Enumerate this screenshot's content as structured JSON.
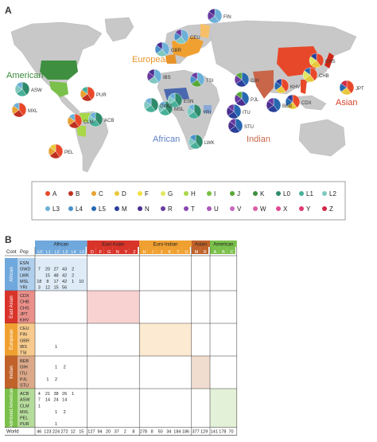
{
  "panel_a_label": "A",
  "panel_b_label": "B",
  "map": {
    "regions": [
      {
        "id": "american",
        "label": "American",
        "color": "#3a8a3a"
      },
      {
        "id": "european",
        "label": "European",
        "color": "#e8932a"
      },
      {
        "id": "african",
        "label": "African",
        "color": "#5b7fc4"
      },
      {
        "id": "indian",
        "label": "Indian",
        "color": "#c9664a"
      },
      {
        "id": "asian",
        "label": "Asian",
        "color": "#d8422a"
      }
    ],
    "populations": [
      "FIN",
      "CEU",
      "GBR",
      "IBS",
      "TSI",
      "ASW",
      "MXL",
      "PUR",
      "ACB",
      "CLM",
      "PEL",
      "GWD",
      "MSL",
      "ESN",
      "YRI",
      "LWK",
      "GIH",
      "PJL",
      "BEB",
      "ITU",
      "STU",
      "CDX",
      "CHB",
      "CHS",
      "JPT",
      "KHV"
    ]
  },
  "legend": {
    "row1": [
      {
        "label": "A",
        "color": "#e8482a"
      },
      {
        "label": "B",
        "color": "#c03020"
      },
      {
        "label": "C",
        "color": "#e8a030"
      },
      {
        "label": "D",
        "color": "#e8c83a"
      },
      {
        "label": "F",
        "color": "#f0e040"
      },
      {
        "label": "G",
        "color": "#e0e860"
      },
      {
        "label": "H",
        "color": "#a8d848"
      },
      {
        "label": "I",
        "color": "#78c040"
      },
      {
        "label": "J",
        "color": "#58a838"
      },
      {
        "label": "K",
        "color": "#3e9040"
      },
      {
        "label": "L0",
        "color": "#2e8a6a"
      },
      {
        "label": "L1",
        "color": "#48b098"
      },
      {
        "label": "L2",
        "color": "#80c8c0"
      }
    ],
    "row2": [
      {
        "label": "L3",
        "color": "#6cb0d8"
      },
      {
        "label": "L4",
        "color": "#4a90c8"
      },
      {
        "label": "L5",
        "color": "#2868b0"
      },
      {
        "label": "M",
        "color": "#2a3e9a"
      },
      {
        "label": "N",
        "color": "#4a2e90"
      },
      {
        "label": "R",
        "color": "#6a3aa0"
      },
      {
        "label": "T",
        "color": "#8a48b0"
      },
      {
        "label": "U",
        "color": "#a858b8"
      },
      {
        "label": "V",
        "color": "#c868c0"
      },
      {
        "label": "W",
        "color": "#d860a8"
      },
      {
        "label": "X",
        "color": "#e04890"
      },
      {
        "label": "Y",
        "color": "#e03870"
      },
      {
        "label": "Z",
        "color": "#d02848"
      }
    ]
  },
  "table": {
    "head_cont": "Cont",
    "head_pop": "Pop",
    "groups": [
      {
        "name": "African",
        "color": "#6fa8dc",
        "cols": [
          "L0",
          "L1",
          "L2",
          "L3",
          "L4",
          "L5"
        ]
      },
      {
        "name": "East Asian",
        "color": "#d9342a",
        "cols": [
          "D",
          "F",
          "G",
          "N",
          "Y",
          "Z"
        ]
      },
      {
        "name": "Euro-Indian",
        "color": "#f0a030",
        "cols": [
          "H",
          "I",
          "J",
          "K",
          "T",
          "U"
        ]
      },
      {
        "name": "Asian",
        "color": "#c0622a",
        "cols": [
          "M",
          "R"
        ]
      },
      {
        "name": "American",
        "color": "#7ac04a",
        "cols": [
          "A",
          "B",
          "C"
        ]
      }
    ],
    "continents": [
      {
        "name": "African",
        "color": "#6fa8dc",
        "pops": [
          "ESN",
          "GWD",
          "LWK",
          "MSL",
          "YRI"
        ]
      },
      {
        "name": "East Asian",
        "color": "#d9342a",
        "pops": [
          "CDX",
          "CHB",
          "CHS",
          "JPT",
          "KHV"
        ]
      },
      {
        "name": "European",
        "color": "#f0a030",
        "pops": [
          "CEU",
          "FIN",
          "GBR",
          "IBS",
          "TSI"
        ]
      },
      {
        "name": "Indian",
        "color": "#c0622a",
        "pops": [
          "BEB",
          "GIH",
          "ITU",
          "PJL",
          "STU"
        ]
      },
      {
        "name": "Admixed American",
        "color": "#7ac04a",
        "pops": [
          "ACB",
          "ASW",
          "CLM",
          "MXL",
          "PEL",
          "PUR"
        ]
      }
    ],
    "rows": [
      [
        "",
        "",
        "",
        "",
        "",
        "",
        "",
        "",
        "",
        "",
        "",
        "",
        "",
        "",
        "",
        "",
        "",
        "",
        "",
        "",
        "",
        "",
        "",
        ""
      ],
      [
        "7",
        "20",
        "27",
        "43",
        "2",
        "",
        "",
        "",
        "",
        "",
        "",
        "",
        "",
        "",
        "",
        "",
        "",
        "6",
        "",
        "",
        "",
        "",
        ""
      ],
      [
        "",
        "15",
        "48",
        "42",
        "2",
        "",
        "",
        "",
        "",
        "",
        "",
        "",
        "",
        "",
        "",
        "",
        "",
        "1",
        "",
        "",
        "",
        "",
        ""
      ],
      [
        "18",
        "8",
        "17",
        "42",
        "1",
        "10",
        "",
        "",
        "",
        "",
        "",
        "",
        "",
        "",
        "",
        "",
        "",
        "",
        "1",
        "",
        "",
        "",
        ""
      ],
      [
        "3",
        "12",
        "15",
        "56",
        "",
        "",
        "",
        "",
        "",
        "",
        "",
        "",
        "",
        "",
        "",
        "",
        "",
        "",
        "",
        "",
        "",
        "",
        ""
      ],
      [
        "",
        "",
        "",
        "",
        "",
        "",
        "",
        "",
        "",
        "",
        "",
        "",
        "",
        "",
        "",
        "",
        "",
        "",
        "",
        "",
        "",
        "",
        ""
      ],
      [
        "",
        "",
        "",
        "",
        "",
        "",
        "12",
        "25",
        "",
        "",
        "",
        "",
        "",
        "",
        "",
        "",
        "",
        "",
        "24",
        "14",
        "",
        "",
        ""
      ],
      [
        "",
        "",
        "",
        "",
        "",
        "",
        "",
        "",
        "",
        "",
        "",
        "",
        "",
        "",
        "",
        "",
        "",
        "",
        "",
        "",
        "",
        "",
        ""
      ],
      [
        "",
        "",
        "",
        "",
        "",
        "",
        "",
        "",
        "",
        "",
        "",
        "",
        "",
        "",
        "",
        "",
        "",
        "",
        "",
        "",
        "",
        "",
        ""
      ],
      [
        "",
        "",
        "",
        "",
        "",
        "",
        "",
        "",
        "",
        "",
        "",
        "",
        "",
        "",
        "",
        "",
        "",
        "",
        "",
        "",
        "",
        "",
        ""
      ]
    ],
    "left_block": [
      [
        "",
        "",
        "",
        "",
        "",
        ""
      ],
      [
        "7",
        "20",
        "27",
        "43",
        "2",
        ""
      ],
      [
        "",
        "15",
        "48",
        "42",
        "2",
        ""
      ],
      [
        "18",
        "8",
        "17",
        "42",
        "1",
        "10"
      ],
      [
        "3",
        "12",
        "15",
        "56",
        "",
        ""
      ],
      [
        "",
        "",
        "",
        "",
        "",
        ""
      ],
      [
        "",
        "",
        "",
        "",
        "",
        ""
      ],
      [
        "",
        "",
        "",
        "",
        "",
        ""
      ],
      [
        "",
        "",
        "",
        "",
        "",
        ""
      ],
      [
        "",
        "",
        "",
        "",
        "",
        ""
      ],
      [
        "",
        "",
        "",
        "",
        "",
        ""
      ],
      [
        "",
        "",
        "",
        "",
        "",
        ""
      ],
      [
        "",
        "",
        "",
        "",
        "",
        ""
      ],
      [
        "",
        "",
        "1",
        "",
        "",
        ""
      ],
      [
        "",
        "",
        "",
        "",
        "",
        ""
      ],
      [
        "",
        "",
        "",
        "",
        "",
        ""
      ],
      [
        "",
        "",
        "1",
        "2",
        "",
        ""
      ],
      [
        "",
        "",
        "",
        "",
        "",
        ""
      ],
      [
        "",
        "1",
        "2",
        "",
        "",
        ""
      ],
      [
        "",
        "",
        "",
        "",
        "",
        ""
      ],
      [
        "4",
        "21",
        "38",
        "26",
        "1",
        ""
      ],
      [
        "7",
        "14",
        "24",
        "14",
        "",
        ""
      ],
      [
        "1",
        "",
        "",
        "",
        "",
        ""
      ],
      [
        "",
        "",
        "1",
        "2",
        "",
        ""
      ],
      [
        "",
        "",
        "",
        "",
        "",
        ""
      ],
      [
        "",
        "",
        "1",
        "",
        "",
        ""
      ]
    ],
    "world_label": "World",
    "world_values": [
      "46",
      "123",
      "224",
      "272",
      "12",
      "15",
      "127",
      "94",
      "20",
      "37",
      "2",
      "8",
      "278",
      "8",
      "50",
      "34",
      "184",
      "186",
      "377",
      "129",
      "141",
      "178",
      "70"
    ]
  }
}
